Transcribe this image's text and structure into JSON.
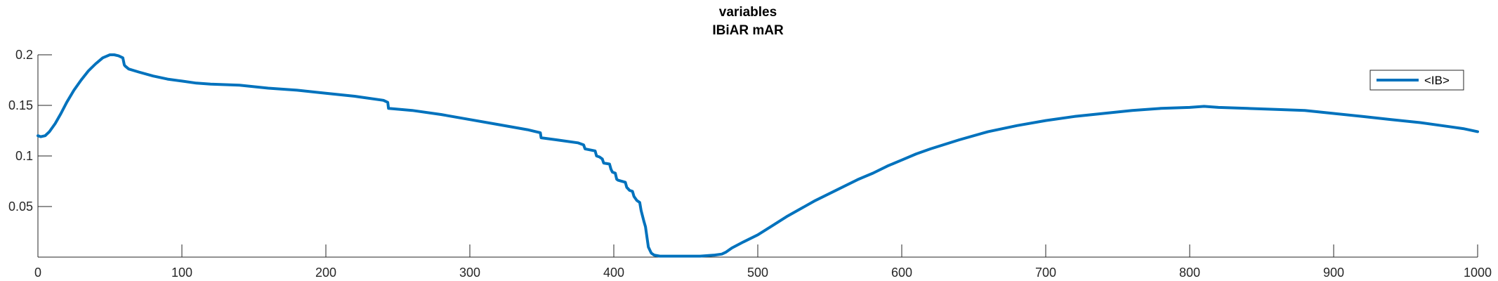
{
  "chart_data": {
    "type": "line",
    "title": "variables",
    "subtitle": "IBiAR mAR",
    "xlabel": "",
    "ylabel": "",
    "xlim": [
      0,
      1000
    ],
    "ylim": [
      0,
      0.2
    ],
    "xticks": [
      0,
      100,
      200,
      300,
      400,
      500,
      600,
      700,
      800,
      900,
      1000
    ],
    "xtick_labels": [
      "0",
      "100",
      "200",
      "300",
      "400",
      "500",
      "600",
      "700",
      "800",
      "900",
      "1000"
    ],
    "yticks": [
      0.05,
      0.1,
      0.15,
      0.2
    ],
    "ytick_labels": [
      "0.05",
      "0.1",
      "0.15",
      "0.2"
    ],
    "grid": false,
    "legend_position": "top-right",
    "color": "#0072BD",
    "series": [
      {
        "name": "<IB>",
        "x": [
          0,
          2,
          5,
          8,
          12,
          16,
          20,
          25,
          30,
          35,
          40,
          45,
          50,
          53,
          56,
          59,
          60,
          60.5,
          63,
          70,
          80,
          90,
          100,
          110,
          120,
          140,
          160,
          180,
          200,
          220,
          240,
          243,
          243.5,
          260,
          280,
          300,
          320,
          340,
          349,
          349.5,
          360,
          375,
          379,
          380,
          387,
          388,
          390,
          392,
          393,
          397,
          398,
          399,
          401,
          402,
          403,
          408,
          409,
          411,
          413,
          414,
          416,
          418,
          419,
          421,
          422,
          424,
          426,
          428,
          432,
          440,
          450,
          460,
          470,
          475,
          478,
          482,
          490,
          500,
          510,
          520,
          530,
          540,
          550,
          560,
          570,
          580,
          590,
          600,
          610,
          620,
          640,
          660,
          680,
          700,
          720,
          740,
          760,
          780,
          800,
          810,
          820,
          840,
          860,
          880,
          900,
          920,
          940,
          960,
          980,
          990,
          1000
        ],
        "values": [
          0.12,
          0.119,
          0.12,
          0.124,
          0.132,
          0.142,
          0.153,
          0.165,
          0.175,
          0.184,
          0.191,
          0.197,
          0.2,
          0.2,
          0.199,
          0.197,
          0.19,
          0.189,
          0.186,
          0.183,
          0.179,
          0.176,
          0.174,
          0.172,
          0.171,
          0.17,
          0.167,
          0.165,
          0.162,
          0.159,
          0.155,
          0.153,
          0.147,
          0.145,
          0.141,
          0.136,
          0.131,
          0.126,
          0.123,
          0.118,
          0.116,
          0.113,
          0.111,
          0.107,
          0.105,
          0.1,
          0.099,
          0.097,
          0.093,
          0.092,
          0.087,
          0.084,
          0.083,
          0.077,
          0.076,
          0.074,
          0.069,
          0.066,
          0.065,
          0.06,
          0.056,
          0.054,
          0.046,
          0.035,
          0.03,
          0.01,
          0.004,
          0.002,
          0.001,
          0.001,
          0.001,
          0.001,
          0.002,
          0.003,
          0.005,
          0.009,
          0.015,
          0.022,
          0.031,
          0.04,
          0.048,
          0.056,
          0.063,
          0.07,
          0.077,
          0.083,
          0.09,
          0.096,
          0.102,
          0.107,
          0.116,
          0.124,
          0.13,
          0.135,
          0.139,
          0.142,
          0.145,
          0.147,
          0.148,
          0.149,
          0.148,
          0.147,
          0.146,
          0.145,
          0.142,
          0.139,
          0.136,
          0.133,
          0.129,
          0.127,
          0.124
        ]
      }
    ]
  }
}
